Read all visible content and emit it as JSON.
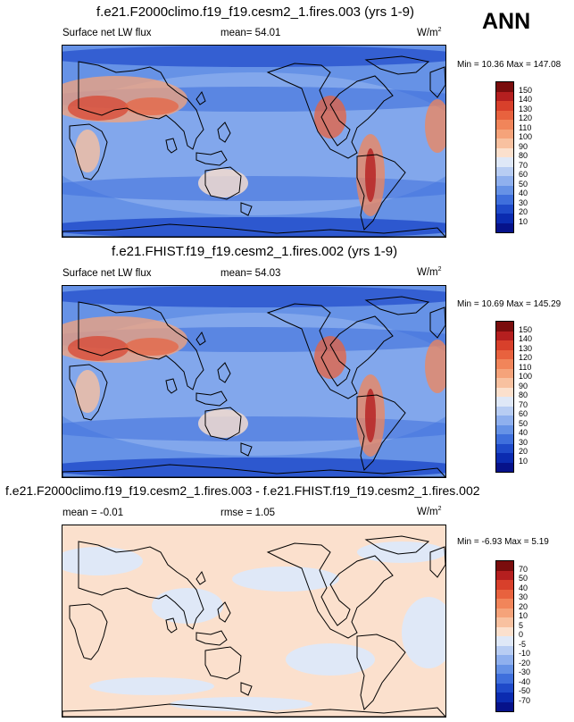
{
  "season": "ANN",
  "panels": [
    {
      "title": "f.e21.F2000climo.f19_f19.cesm2_1.fires.003 (yrs 1-9)",
      "left_label": "Surface net LW flux",
      "mid_label": "mean=  54.01",
      "units": "W/m",
      "units_sup": "2",
      "minmax": "Min =  10.36 Max = 147.08",
      "colorbar_ticks": [
        "150",
        "140",
        "130",
        "120",
        "110",
        "100",
        "90",
        "80",
        "70",
        "60",
        "50",
        "40",
        "30",
        "20",
        "10"
      ],
      "colorbar_colors": [
        "#7a0d0d",
        "#b51f1f",
        "#d8402b",
        "#e8623e",
        "#f1855a",
        "#f5a37a",
        "#f8c1a0",
        "#fbe0cd",
        "#dfe8f7",
        "#b8cdf3",
        "#8fb0ee",
        "#6692e6",
        "#3f6fdc",
        "#1f4ac9",
        "#0b2bb0",
        "#06128a"
      ],
      "style": "base"
    },
    {
      "title": "f.e21.FHIST.f19_f19.cesm2_1.fires.002 (yrs 1-9)",
      "left_label": "Surface net LW flux",
      "mid_label": "mean=  54.03",
      "units": "W/m",
      "units_sup": "2",
      "minmax": "Min =  10.69 Max = 145.29",
      "colorbar_ticks": [
        "150",
        "140",
        "130",
        "120",
        "110",
        "100",
        "90",
        "80",
        "70",
        "60",
        "50",
        "40",
        "30",
        "20",
        "10"
      ],
      "colorbar_colors": [
        "#7a0d0d",
        "#b51f1f",
        "#d8402b",
        "#e8623e",
        "#f1855a",
        "#f5a37a",
        "#f8c1a0",
        "#fbe0cd",
        "#dfe8f7",
        "#b8cdf3",
        "#8fb0ee",
        "#6692e6",
        "#3f6fdc",
        "#1f4ac9",
        "#0b2bb0",
        "#06128a"
      ],
      "style": "base"
    },
    {
      "title": "f.e21.F2000climo.f19_f19.cesm2_1.fires.003 - f.e21.FHIST.f19_f19.cesm2_1.fires.002",
      "left_label": "mean =  -0.01",
      "mid_label": "rmse =   1.05",
      "units": "W/m",
      "units_sup": "2",
      "minmax": "Min =  -6.93 Max =   5.19",
      "colorbar_ticks": [
        "70",
        "50",
        "40",
        "30",
        "20",
        "10",
        "5",
        "0",
        "-5",
        "-10",
        "-20",
        "-30",
        "-40",
        "-50",
        "-70"
      ],
      "colorbar_colors": [
        "#7a0d0d",
        "#b51f1f",
        "#d8402b",
        "#e8623e",
        "#f1855a",
        "#f5a37a",
        "#f8c1a0",
        "#fbe0cd",
        "#dfe8f7",
        "#b8cdf3",
        "#8fb0ee",
        "#6692e6",
        "#3f6fdc",
        "#1f4ac9",
        "#0b2bb0",
        "#06128a"
      ],
      "style": "diff"
    }
  ]
}
